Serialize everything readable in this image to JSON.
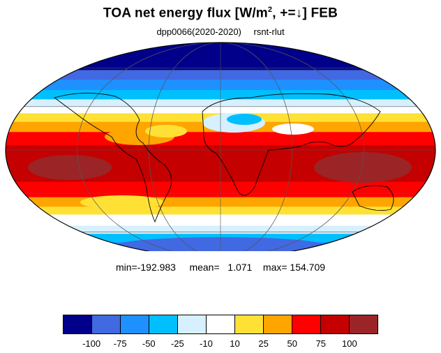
{
  "title_main": "TOA net energy flux  [W/m",
  "title_sup": "2",
  "title_tail": ", +=↓] FEB",
  "subtitle": {
    "left": "dpp0066(2020-2020)",
    "right": "rsnt-rlut"
  },
  "stats": {
    "min": "min=-192.983",
    "mean": "mean=   1.071",
    "max": "max= 154.709"
  },
  "colorbar": {
    "colors": [
      "#00008b",
      "#4169e1",
      "#1e90ff",
      "#00bfff",
      "#d6f0ff",
      "#ffffff",
      "#ffe135",
      "#ffa500",
      "#ff0000",
      "#c40000",
      "#9b2426"
    ],
    "labels": [
      "-100",
      "-75",
      "-50",
      "-25",
      "-10",
      "10",
      "25",
      "50",
      "75",
      "100"
    ]
  },
  "map": {
    "projection": "mollweide",
    "bands": [
      {
        "lat": 90,
        "color": "#00008b"
      },
      {
        "lat": 66,
        "color": "#00008b"
      },
      {
        "lat": 58,
        "color": "#4169e1"
      },
      {
        "lat": 50,
        "color": "#1e90ff"
      },
      {
        "lat": 42,
        "color": "#00bfff"
      },
      {
        "lat": 35,
        "color": "#d6f0ff"
      },
      {
        "lat": 30,
        "color": "#ffffff"
      },
      {
        "lat": 25,
        "color": "#ffe135"
      },
      {
        "lat": 19,
        "color": "#ffa500"
      },
      {
        "lat": 12,
        "color": "#ff0000"
      },
      {
        "lat": 3,
        "color": "#c40000"
      },
      {
        "lat": -8,
        "color": "#c40000"
      },
      {
        "lat": -22,
        "color": "#ff0000"
      },
      {
        "lat": -33,
        "color": "#ffa500"
      },
      {
        "lat": -40,
        "color": "#ffe135"
      },
      {
        "lat": -46,
        "color": "#ffffff"
      },
      {
        "lat": -55,
        "color": "#d6f0ff"
      },
      {
        "lat": -62,
        "color": "#00bfff"
      },
      {
        "lat": -70,
        "color": "#1e90ff"
      },
      {
        "lat": -78,
        "color": "#4169e1"
      },
      {
        "lat": -90,
        "color": "#4169e1"
      }
    ]
  }
}
